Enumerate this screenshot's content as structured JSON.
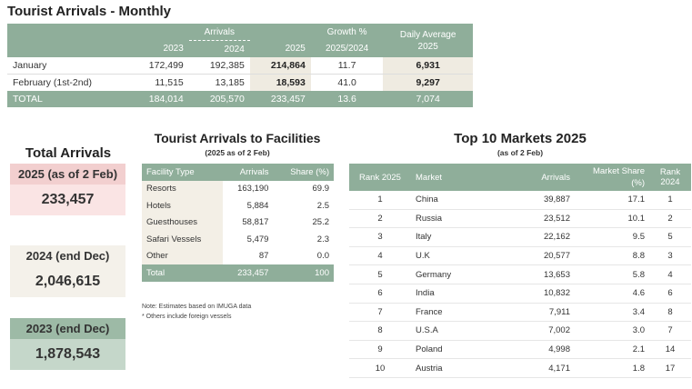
{
  "page_title": "Tourist Arrivals - Monthly",
  "monthly": {
    "group_header": "Arrivals",
    "growth_header": "Growth %",
    "daily_header": "Daily Average",
    "years": [
      "2023",
      "2024",
      "2025"
    ],
    "growth_sub": "2025/2024",
    "daily_sub": "2025",
    "rows": [
      {
        "label": "January",
        "y2023": "172,499",
        "y2024": "192,385",
        "y2025": "214,864",
        "growth": "11.7",
        "daily": "6,931"
      },
      {
        "label": "February (1st-2nd)",
        "y2023": "11,515",
        "y2024": "13,185",
        "y2025": "18,593",
        "growth": "41.0",
        "daily": "9,297"
      }
    ],
    "total": {
      "label": "TOTAL",
      "y2023": "184,014",
      "y2024": "205,570",
      "y2025": "233,457",
      "growth": "13.6",
      "daily": "7,074"
    }
  },
  "total_arrivals": {
    "title": "Total Arrivals",
    "boxes": [
      {
        "label": "2025 (as of 2 Feb)",
        "value": "233,457",
        "label_bg": "#f2cfcf",
        "value_bg": "#fae4e4"
      },
      {
        "label": "2024 (end Dec)",
        "value": "2,046,615",
        "label_bg": "#f4f1ea",
        "value_bg": "#f4f1ea"
      },
      {
        "label": "2023 (end Dec)",
        "value": "1,878,543",
        "label_bg": "#9dbaa6",
        "value_bg": "#c5d7ca"
      }
    ]
  },
  "facilities": {
    "title": "Tourist Arrivals to Facilities",
    "subtitle": "(2025 as of 2 Feb)",
    "headers": [
      "Facility Type",
      "Arrivals",
      "Share (%)"
    ],
    "rows": [
      {
        "type": "Resorts",
        "arrivals": "163,190",
        "share": "69.9"
      },
      {
        "type": "Hotels",
        "arrivals": "5,884",
        "share": "2.5"
      },
      {
        "type": "Guesthouses",
        "arrivals": "58,817",
        "share": "25.2"
      },
      {
        "type": "Safari Vessels",
        "arrivals": "5,479",
        "share": "2.3"
      },
      {
        "type": "Other",
        "arrivals": "87",
        "share": "0.0"
      }
    ],
    "total": {
      "type": "Total",
      "arrivals": "233,457",
      "share": "100"
    },
    "note1": "Note: Estimates based on IMUGA data",
    "note2": "* Others include foreign vessels"
  },
  "markets": {
    "title": "Top 10 Markets 2025",
    "subtitle": "(as of 2 Feb)",
    "headers": [
      "Rank 2025",
      "Market",
      "Arrivals",
      "Market Share (%)",
      "Rank 2024"
    ],
    "rows": [
      {
        "rank": "1",
        "market": "China",
        "arrivals": "39,887",
        "share": "17.1",
        "rank2024": "1"
      },
      {
        "rank": "2",
        "market": "Russia",
        "arrivals": "23,512",
        "share": "10.1",
        "rank2024": "2"
      },
      {
        "rank": "3",
        "market": "Italy",
        "arrivals": "22,162",
        "share": "9.5",
        "rank2024": "5"
      },
      {
        "rank": "4",
        "market": "U.K",
        "arrivals": "20,577",
        "share": "8.8",
        "rank2024": "3"
      },
      {
        "rank": "5",
        "market": "Germany",
        "arrivals": "13,653",
        "share": "5.8",
        "rank2024": "4"
      },
      {
        "rank": "6",
        "market": "India",
        "arrivals": "10,832",
        "share": "4.6",
        "rank2024": "6"
      },
      {
        "rank": "7",
        "market": "France",
        "arrivals": "7,911",
        "share": "3.4",
        "rank2024": "8"
      },
      {
        "rank": "8",
        "market": "U.S.A",
        "arrivals": "7,002",
        "share": "3.0",
        "rank2024": "7"
      },
      {
        "rank": "9",
        "market": "Poland",
        "arrivals": "4,998",
        "share": "2.1",
        "rank2024": "14"
      },
      {
        "rank": "10",
        "market": "Austria",
        "arrivals": "4,171",
        "share": "1.8",
        "rank2024": "17"
      }
    ]
  }
}
